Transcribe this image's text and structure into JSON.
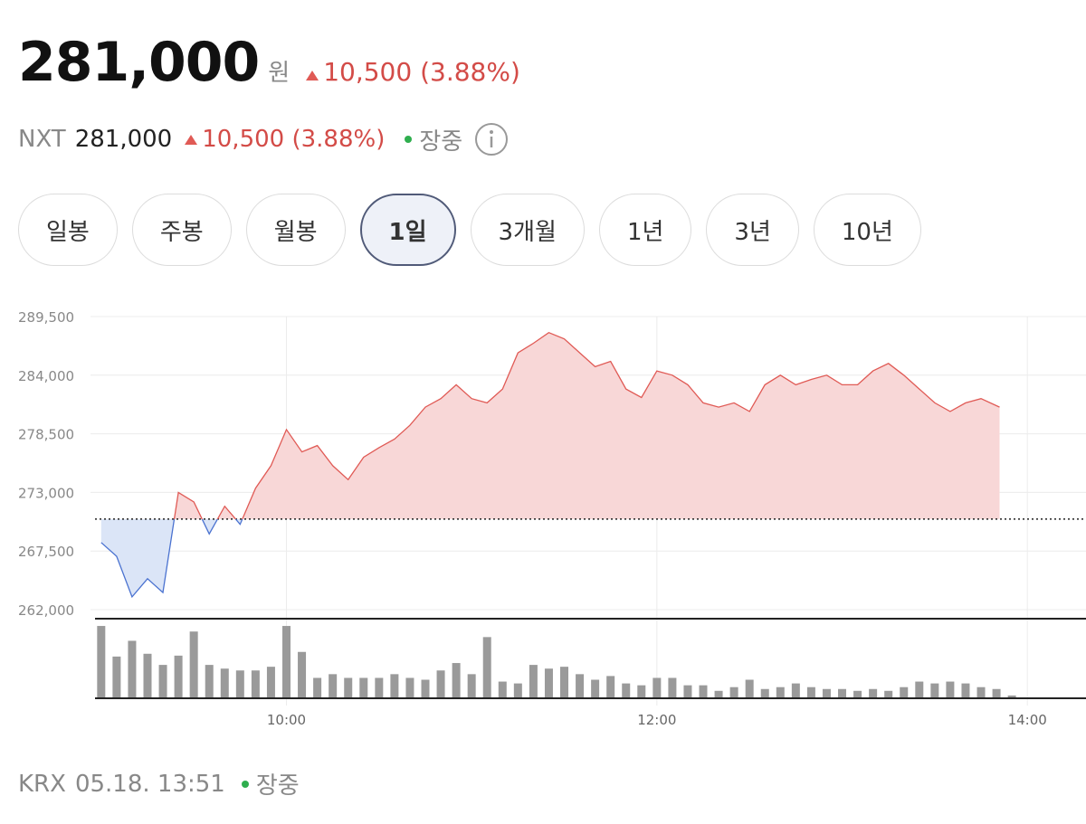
{
  "header": {
    "price": "281,000",
    "unit": "원",
    "change": "10,500 (3.88%)"
  },
  "nxt": {
    "label": "NXT",
    "price": "281,000",
    "change": "10,500 (3.88%)",
    "status": "장중"
  },
  "tabs": [
    "일봉",
    "주봉",
    "월봉",
    "1일",
    "3개월",
    "1년",
    "3년",
    "10년"
  ],
  "active_tab": 3,
  "chart_data": [
    {
      "type": "line",
      "x": [
        540,
        545,
        550,
        555,
        560,
        565,
        570,
        575,
        580,
        585,
        590,
        595,
        600,
        605,
        610,
        615,
        620,
        625,
        630,
        635,
        640,
        645,
        650,
        655,
        660,
        665,
        670,
        675,
        680,
        685,
        690,
        695,
        700,
        705,
        710,
        715,
        720,
        725,
        730,
        735,
        740,
        745,
        750,
        755,
        760,
        765,
        770,
        775,
        780,
        785,
        790,
        795,
        800,
        805,
        810,
        815,
        820,
        825,
        831
      ],
      "values": [
        268300,
        267000,
        263200,
        264900,
        263600,
        273000,
        272100,
        269100,
        271700,
        270000,
        273400,
        275500,
        278900,
        276800,
        277400,
        275500,
        274200,
        276300,
        277200,
        278000,
        279300,
        281000,
        281800,
        283100,
        281800,
        281400,
        282700,
        286100,
        287000,
        288000,
        287400,
        286100,
        284800,
        285300,
        282700,
        281900,
        284400,
        284000,
        283100,
        281400,
        281000,
        281400,
        280600,
        283100,
        284000,
        283100,
        283600,
        284000,
        283100,
        283100,
        284400,
        285100,
        284000,
        282700,
        281400,
        280600,
        281400,
        281800,
        281000
      ],
      "base": 270500,
      "up_color": "#e05a55",
      "down_color": "#4a72d0",
      "xlim": [
        538,
        859
      ],
      "ylim": [
        262000,
        289500
      ],
      "yticks": [
        {
          "value": 262000,
          "label": "262,000"
        },
        {
          "value": 267500,
          "label": "267,500"
        },
        {
          "value": 273000,
          "label": "273,000"
        },
        {
          "value": 278500,
          "label": "278,500"
        },
        {
          "value": 284000,
          "label": "284,000"
        },
        {
          "value": 289500,
          "label": "289,500"
        }
      ],
      "xticks": [
        {
          "value": 600,
          "label": "10:00"
        },
        {
          "value": 720,
          "label": "12:00"
        },
        {
          "value": 840,
          "label": "14:00"
        }
      ],
      "grid": true
    },
    {
      "type": "bar",
      "x": [
        540,
        545,
        550,
        555,
        560,
        565,
        570,
        575,
        580,
        585,
        590,
        595,
        600,
        605,
        610,
        615,
        620,
        625,
        630,
        635,
        640,
        645,
        650,
        655,
        660,
        665,
        670,
        675,
        680,
        685,
        690,
        695,
        700,
        705,
        710,
        715,
        720,
        725,
        730,
        735,
        740,
        745,
        750,
        755,
        760,
        765,
        770,
        775,
        780,
        785,
        790,
        795,
        800,
        805,
        810,
        815,
        820,
        825,
        830,
        835
      ],
      "values": [
        78,
        45,
        62,
        48,
        36,
        46,
        72,
        36,
        32,
        30,
        30,
        34,
        78,
        50,
        22,
        26,
        22,
        22,
        22,
        26,
        22,
        20,
        30,
        38,
        26,
        66,
        18,
        16,
        36,
        32,
        34,
        26,
        20,
        24,
        16,
        14,
        22,
        22,
        14,
        14,
        8,
        12,
        20,
        10,
        12,
        16,
        12,
        10,
        10,
        8,
        10,
        8,
        12,
        18,
        16,
        18,
        16,
        12,
        10,
        3
      ],
      "color": "#9a9a9a",
      "xlim": [
        538,
        859
      ],
      "ylim": [
        0,
        80
      ]
    }
  ],
  "footer": {
    "exchange": "KRX",
    "datetime": "05.18. 13:51",
    "status": "장중"
  }
}
